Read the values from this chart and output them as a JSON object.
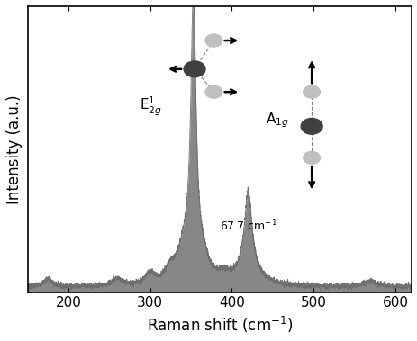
{
  "xlim": [
    150,
    620
  ],
  "ylim": [
    0.0,
    1.05
  ],
  "xlabel": "Raman shift (cm$^{-1}$)",
  "ylabel": "Intensity (a.u.)",
  "xticks": [
    200,
    300,
    400,
    500,
    600
  ],
  "bg_color": "#ffffff",
  "fill_color": "#7a7a7a",
  "line_color": "#6a6a6a",
  "dark_atom_color": "#404040",
  "light_atom_color": "#c0c0c0"
}
